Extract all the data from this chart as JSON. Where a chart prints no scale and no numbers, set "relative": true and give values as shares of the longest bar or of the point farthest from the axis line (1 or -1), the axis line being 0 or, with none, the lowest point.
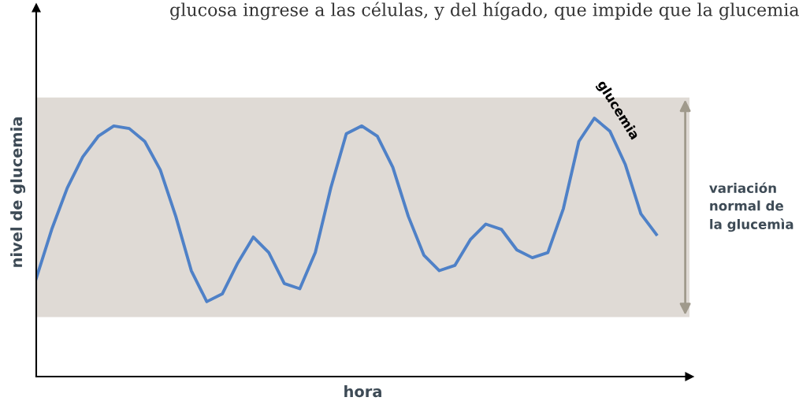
{
  "chart_data": {
    "type": "line",
    "relative": true,
    "annotations": [
      "glucosa ingrese a las células, y del hígado, que impide que la glucemia"
    ],
    "xlabel": "hora",
    "ylabel": "nivel de glucemia",
    "categories": [
      null,
      null,
      null,
      null,
      null,
      null,
      null,
      null,
      null,
      null,
      null,
      null,
      null,
      null,
      null,
      null,
      null,
      null,
      null,
      null,
      null,
      null,
      null,
      null,
      null,
      null,
      null,
      null,
      null,
      null,
      null,
      null,
      null,
      null,
      null,
      null,
      null,
      null,
      null,
      null,
      null
    ],
    "series": [
      {
        "name": "glucemia",
        "color": "#4f81c7",
        "values": [
          0.38,
          0.57,
          0.73,
          0.85,
          0.93,
          0.97,
          0.96,
          0.91,
          0.8,
          0.62,
          0.41,
          0.29,
          0.32,
          0.44,
          0.54,
          0.48,
          0.36,
          0.34,
          0.48,
          0.73,
          0.94,
          0.97,
          0.93,
          0.81,
          0.62,
          0.47,
          0.41,
          0.43,
          0.53,
          0.59,
          0.57,
          0.49,
          0.46,
          0.48,
          0.65,
          0.91,
          1,
          0.95,
          0.82,
          0.63,
          0.55
        ]
      }
    ],
    "bands": [
      {
        "axis": "y",
        "from": 0.23,
        "to": 1.08,
        "label": "variación\nnormal de\nla glucemìa",
        "color": "#dfdad5"
      }
    ],
    "legend": false,
    "marker": "none",
    "line_style": "solid"
  }
}
